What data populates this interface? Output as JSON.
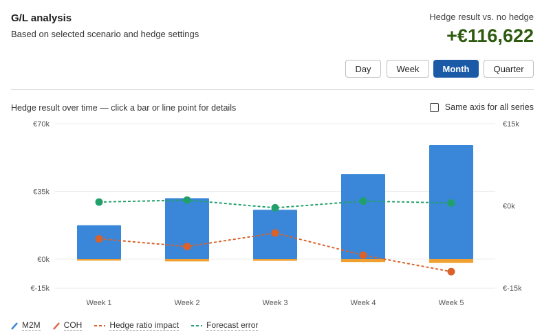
{
  "header": {
    "title": "G/L analysis",
    "subtitle": "Based on selected scenario and hedge settings",
    "hedge_label": "Hedge result vs. no hedge",
    "hedge_value": "+€116,622"
  },
  "period_buttons": [
    {
      "label": "Day",
      "active": false
    },
    {
      "label": "Week",
      "active": false
    },
    {
      "label": "Month",
      "active": true
    },
    {
      "label": "Quarter",
      "active": false
    }
  ],
  "chart_caption": "Hedge result over time — click a bar or line point for details",
  "same_axis_label": "Same axis for all series",
  "colors": {
    "m2m": "#3a87d9",
    "coh": "#f0a030",
    "hedge_ratio": "#d9622b",
    "forecast": "#22a06b",
    "accent": "#1a5aa6",
    "value_green": "#2e5a10"
  },
  "legend": [
    {
      "label": "M2M",
      "icon": "pencil-icon",
      "color": "#3a87d9"
    },
    {
      "label": "COH",
      "icon": "pencil-icon",
      "color": "#f0a030"
    },
    {
      "label": "Hedge ratio impact",
      "icon": "dashed-line",
      "color": "#d9622b"
    },
    {
      "label": "Forecast error",
      "icon": "dashed-line",
      "color": "#22a06b"
    }
  ],
  "chart_data": {
    "type": "bar",
    "categories": [
      "Week 1",
      "Week 2",
      "Week 3",
      "Week 4",
      "Week 5"
    ],
    "left_axis": {
      "ticks": [
        "€70k",
        "€35k",
        "€0k",
        "€-15k"
      ],
      "tick_values": [
        70000,
        35000,
        0,
        -15000
      ],
      "range": [
        -15000,
        70000
      ]
    },
    "right_axis": {
      "ticks": [
        "€15k",
        "€0k",
        "€-15k"
      ],
      "tick_values": [
        15000,
        0,
        -15000
      ],
      "range": [
        -15000,
        15000
      ]
    },
    "grid": true,
    "legend_position": "bottom-left",
    "series": [
      {
        "name": "M2M",
        "type": "bar",
        "axis": "left",
        "values": [
          17500,
          31500,
          25500,
          44000,
          59000
        ]
      },
      {
        "name": "COH",
        "type": "bar",
        "axis": "left",
        "values": [
          -800,
          -1200,
          -900,
          -1500,
          -2000
        ]
      },
      {
        "name": "Hedge ratio impact",
        "type": "line",
        "axis": "left",
        "values": [
          10500,
          6500,
          13500,
          2000,
          -6500
        ]
      },
      {
        "name": "Forecast error",
        "type": "line",
        "axis": "left",
        "values": [
          29500,
          30500,
          26500,
          30000,
          29000
        ]
      }
    ]
  }
}
